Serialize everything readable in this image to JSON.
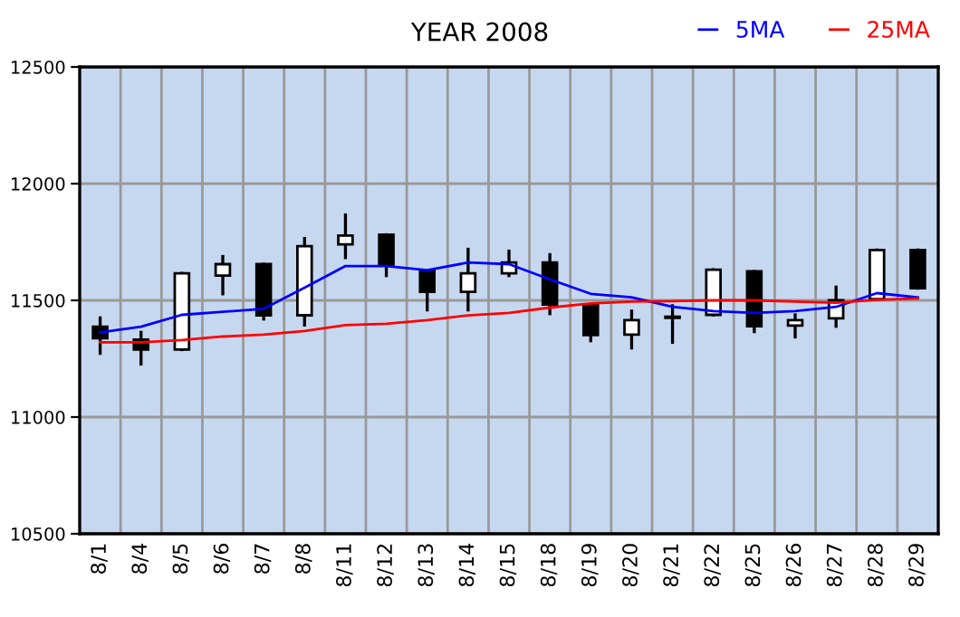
{
  "chart_data": {
    "type": "candlestick",
    "title": "YEAR 2008",
    "categories": [
      "8/1",
      "8/4",
      "8/5",
      "8/6",
      "8/7",
      "8/8",
      "8/11",
      "8/12",
      "8/13",
      "8/14",
      "8/15",
      "8/18",
      "8/19",
      "8/20",
      "8/21",
      "8/22",
      "8/25",
      "8/26",
      "8/27",
      "8/28",
      "8/29"
    ],
    "ohlc": [
      [
        11387,
        11425,
        11273,
        11338
      ],
      [
        11332,
        11363,
        11227,
        11289
      ],
      [
        11289,
        11616,
        11289,
        11616
      ],
      [
        11606,
        11688,
        11528,
        11655
      ],
      [
        11655,
        11655,
        11420,
        11436
      ],
      [
        11436,
        11765,
        11394,
        11732
      ],
      [
        11740,
        11866,
        11683,
        11778
      ],
      [
        11781,
        11781,
        11606,
        11649
      ],
      [
        11629,
        11629,
        11459,
        11536
      ],
      [
        11536,
        11719,
        11459,
        11616
      ],
      [
        11616,
        11711,
        11606,
        11662
      ],
      [
        11662,
        11696,
        11443,
        11482
      ],
      [
        11482,
        11482,
        11327,
        11351
      ],
      [
        11353,
        11454,
        11296,
        11415
      ],
      [
        11430,
        11477,
        11320,
        11425
      ],
      [
        11438,
        11631,
        11438,
        11631
      ],
      [
        11624,
        11624,
        11366,
        11389
      ],
      [
        11392,
        11438,
        11343,
        11415
      ],
      [
        11423,
        11557,
        11389,
        11500
      ],
      [
        11505,
        11716,
        11505,
        11716
      ],
      [
        11716,
        11716,
        11552,
        11552
      ]
    ],
    "series": [
      {
        "type": "line",
        "name": "5MA",
        "color": "#0000ff",
        "values": [
          11363,
          11387,
          11438,
          11451,
          11464,
          11554,
          11647,
          11647,
          11629,
          11662,
          11655,
          11590,
          11528,
          11513,
          11472,
          11454,
          11446,
          11454,
          11472,
          11531,
          11513
        ]
      },
      {
        "type": "line",
        "name": "25MA",
        "color": "#ff0000",
        "values": [
          11320,
          11320,
          11330,
          11345,
          11353,
          11369,
          11394,
          11400,
          11415,
          11436,
          11446,
          11469,
          11487,
          11495,
          11497,
          11500,
          11500,
          11495,
          11490,
          11502,
          11508
        ]
      }
    ],
    "ylim": [
      10500,
      12500
    ],
    "yticks": [
      10500,
      11000,
      11500,
      12000,
      12500
    ],
    "grid": true,
    "legend": "top right",
    "marker": "none",
    "line_style": "solid"
  }
}
